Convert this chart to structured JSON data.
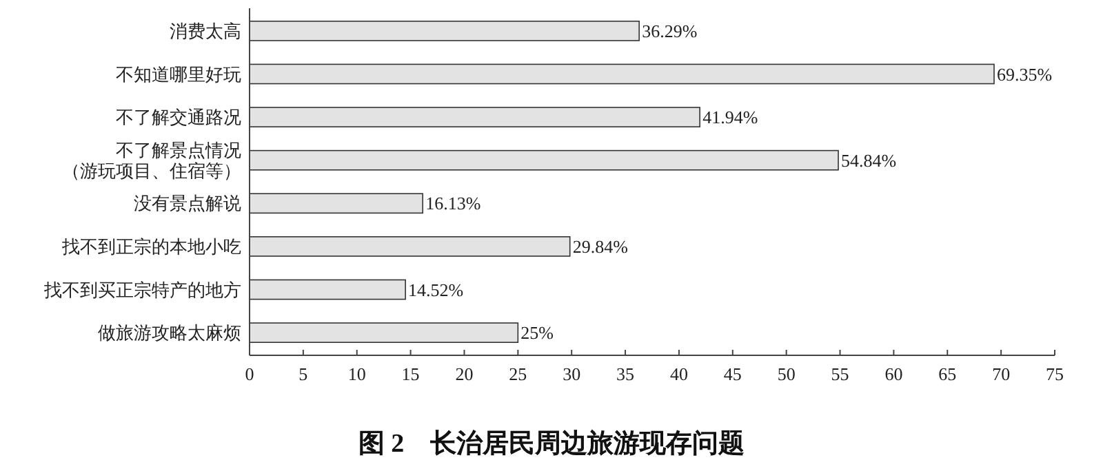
{
  "chart_data": {
    "type": "bar",
    "orientation": "horizontal",
    "title": "图 2　长治居民周边旅游现存问题",
    "categories": [
      "消费太高",
      "不知道哪里好玩",
      "不了解交通路况",
      "不了解景点情况（游玩项目、住宿等）",
      "没有景点解说",
      "找不到正宗的本地小吃",
      "找不到买正宗特产的地方",
      "做旅游攻略太麻烦"
    ],
    "values": [
      36.29,
      69.35,
      41.94,
      54.84,
      16.13,
      29.84,
      14.52,
      25
    ],
    "value_labels": [
      "36.29%",
      "69.35%",
      "41.94%",
      "54.84%",
      "16.13%",
      "29.84%",
      "14.52%",
      "25%"
    ],
    "color": "#e3e3e3",
    "xlim": [
      0,
      75
    ],
    "xticks": [
      0,
      5,
      10,
      15,
      20,
      25,
      30,
      35,
      40,
      45,
      50,
      55,
      60,
      65,
      70,
      75
    ],
    "grid": false
  }
}
